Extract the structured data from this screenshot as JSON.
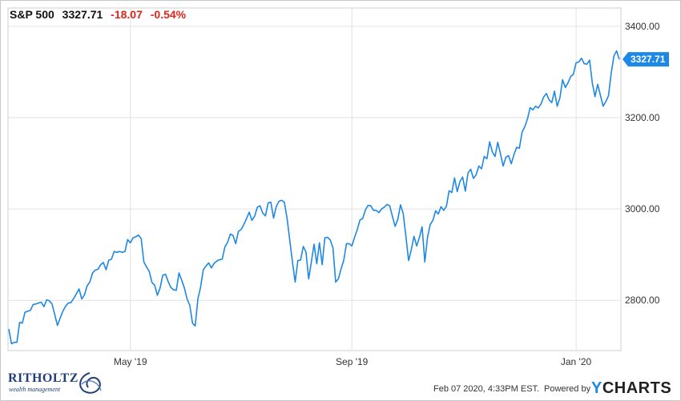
{
  "header": {
    "ticker": "S&P 500",
    "price": "3327.71",
    "change": "-18.07",
    "change_pct": "-0.54%"
  },
  "footer": {
    "timestamp": "Feb 07 2020, 4:33PM EST.",
    "powered_by": "Powered by",
    "brand_y": "Y",
    "brand_rest": "CHARTS"
  },
  "logo": {
    "name": "RITHOLTZ",
    "tagline": "wealth management"
  },
  "colors": {
    "line": "#1e88e5",
    "grid": "#e2e2e2",
    "negative": "#e0241b",
    "tag_bg": "#1e88e5"
  },
  "chart_data": {
    "type": "line",
    "title": "",
    "xlabel": "",
    "ylabel": "",
    "ylim": [
      2690,
      3440
    ],
    "yticks": [
      2800,
      3000,
      3200,
      3400
    ],
    "ytick_labels": [
      "2800.00",
      "3000.00",
      "3200.00",
      "3400.00"
    ],
    "xticks": [
      {
        "label": "May '19",
        "index": 45
      },
      {
        "label": "Sep '19",
        "index": 127
      },
      {
        "label": "Jan '20",
        "index": 210
      }
    ],
    "last_label": "3327.71",
    "grid": true,
    "series": [
      {
        "values": [
          2737,
          2705,
          2708,
          2708,
          2752,
          2750,
          2774,
          2776,
          2778,
          2791,
          2792,
          2794,
          2796,
          2786,
          2801,
          2799,
          2792,
          2769,
          2745,
          2761,
          2776,
          2787,
          2794,
          2795,
          2804,
          2814,
          2825,
          2803,
          2812,
          2832,
          2840,
          2860,
          2866,
          2868,
          2878,
          2883,
          2867,
          2888,
          2890,
          2907,
          2905,
          2907,
          2905,
          2907,
          2933,
          2926,
          2937,
          2939,
          2943,
          2935,
          2884,
          2873,
          2863,
          2839,
          2833,
          2811,
          2827,
          2855,
          2857,
          2841,
          2828,
          2823,
          2822,
          2860,
          2844,
          2827,
          2803,
          2789,
          2750,
          2744,
          2803,
          2829,
          2867,
          2875,
          2882,
          2871,
          2881,
          2886,
          2889,
          2890,
          2917,
          2927,
          2945,
          2942,
          2924,
          2951,
          2955,
          2966,
          2979,
          2993,
          2975,
          2984,
          3004,
          3007,
          2991,
          2985,
          3013,
          3015,
          2980,
          3005,
          3017,
          3019,
          3015,
          2980,
          2932,
          2884,
          2840,
          2887,
          2888,
          2918,
          2906,
          2847,
          2884,
          2923,
          2880,
          2926,
          2878,
          2937,
          2938,
          2932,
          2915,
          2840,
          2847,
          2869,
          2888,
          2924,
          2924,
          2919,
          2938,
          2955,
          2976,
          2979,
          2998,
          3008,
          3007,
          2997,
          2997,
          2992,
          3000,
          3004,
          3010,
          3007,
          2984,
          2962,
          2977,
          3009,
          2990,
          2940,
          2887,
          2911,
          2940,
          2919,
          2938,
          2961,
          2884,
          2938,
          2966,
          2975,
          2996,
          2989,
          3005,
          2997,
          3006,
          3040,
          3036,
          3068,
          3038,
          3060,
          3070,
          3039,
          3079,
          3087,
          3067,
          3075,
          3094,
          3088,
          3115,
          3110,
          3147,
          3125,
          3115,
          3146,
          3121,
          3094,
          3113,
          3117,
          3099,
          3119,
          3135,
          3133,
          3168,
          3180,
          3197,
          3222,
          3217,
          3225,
          3221,
          3230,
          3245,
          3253,
          3239,
          3233,
          3258,
          3225,
          3243,
          3283,
          3266,
          3276,
          3290,
          3295,
          3320,
          3322,
          3330,
          3318,
          3317,
          3326,
          3276,
          3246,
          3273,
          3249,
          3225,
          3235,
          3248,
          3297,
          3335,
          3346,
          3327.71
        ]
      }
    ]
  }
}
